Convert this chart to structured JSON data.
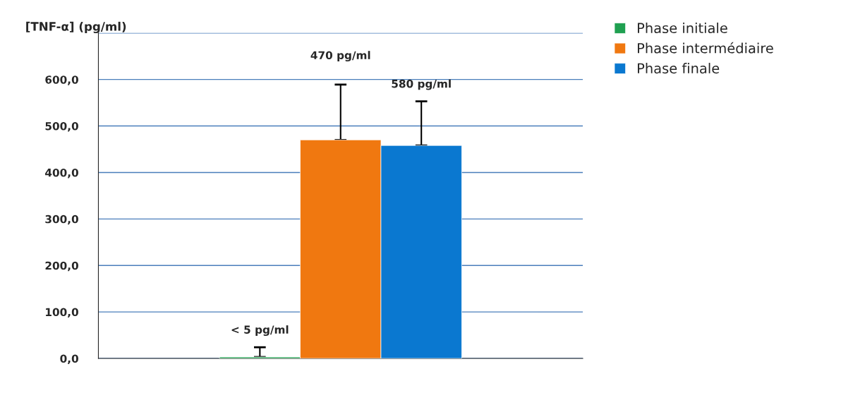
{
  "chart_data": {
    "type": "bar",
    "ylabel": "[TNF-α] (pg/ml)",
    "categories": [
      null
    ],
    "series": [
      {
        "name": "Phase initiale",
        "color": "#1fa050",
        "values": [
          3
        ],
        "errors": [
          [
            3,
            24
          ]
        ]
      },
      {
        "name": "Phase intermédiaire",
        "color": "#f07810",
        "values": [
          470
        ],
        "errors": [
          [
            470,
            589
          ]
        ]
      },
      {
        "name": "Phase finale",
        "color": "#0a78d0",
        "values": [
          458
        ],
        "errors": [
          [
            458,
            553
          ]
        ]
      }
    ],
    "annotations": [
      "< 5 pg/ml",
      "470 pg/ml",
      "580 pg/ml"
    ],
    "ylim": [
      0,
      700
    ],
    "yticks": [
      {
        "value": 0,
        "label": "0,0"
      },
      {
        "value": 100,
        "label": "100,0"
      },
      {
        "value": 200,
        "label": "200,0"
      },
      {
        "value": 300,
        "label": "300,0"
      },
      {
        "value": 400,
        "label": "400,0"
      },
      {
        "value": 500,
        "label": "500,0"
      },
      {
        "value": 600,
        "label": "600,0"
      },
      {
        "value": 700,
        "label": null
      }
    ],
    "grid": "y",
    "legend": "top right"
  }
}
